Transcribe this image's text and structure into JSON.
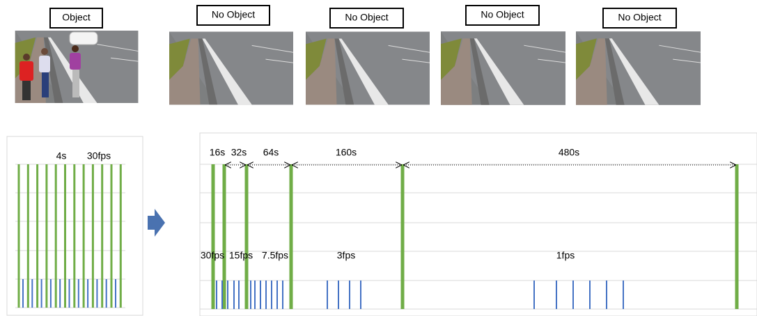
{
  "frames": [
    {
      "label": "Object"
    },
    {
      "label": "No Object"
    },
    {
      "label": "No Object"
    },
    {
      "label": "No Object"
    },
    {
      "label": "No Object"
    }
  ],
  "left_chart": {
    "duration": "4s",
    "rate": "30fps"
  },
  "right_chart": {
    "intervals": [
      "16s",
      "32s",
      "64s",
      "160s",
      "480s"
    ],
    "rates": [
      "30fps",
      "15fps",
      "7.5fps",
      "3fps",
      "1fps"
    ]
  }
}
